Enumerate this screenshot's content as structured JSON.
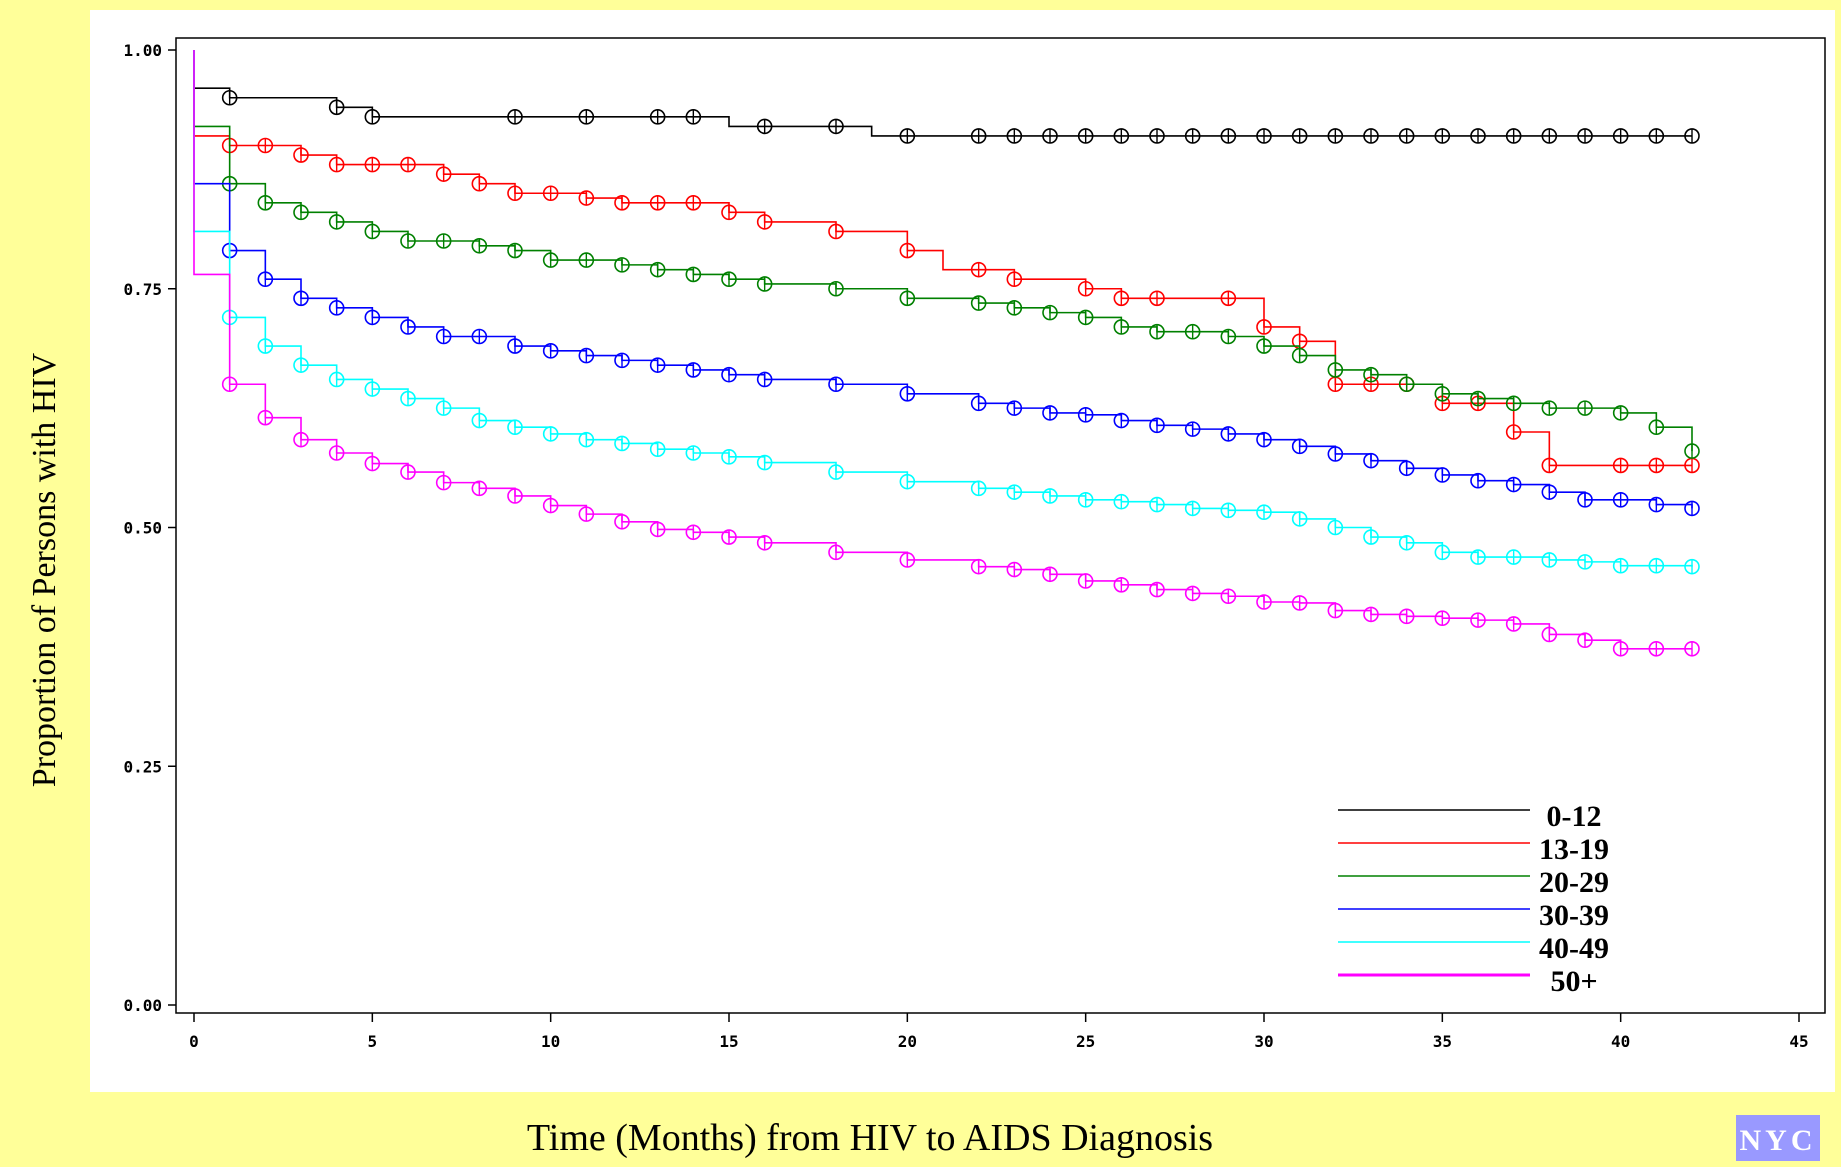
{
  "page": {
    "y_title": "Proportion of Persons with HIV",
    "x_title": "Time (Months) from HIV to AIDS Diagnosis",
    "badge": "NYC"
  },
  "chart_data": {
    "type": "line",
    "step": true,
    "xlabel": "Time (Months) from HIV to AIDS Diagnosis",
    "ylabel": "Proportion of Persons with HIV",
    "xlim": [
      0,
      45
    ],
    "ylim": [
      0,
      1
    ],
    "x_ticks": [
      0,
      5,
      10,
      15,
      20,
      25,
      30,
      35,
      40,
      45
    ],
    "x_tick_labels": [
      "0",
      "5",
      "10",
      "15",
      "20",
      "25",
      "30",
      "35",
      "40",
      "45"
    ],
    "y_ticks": [
      0,
      0.25,
      0.5,
      0.75,
      1.0
    ],
    "y_tick_labels": [
      "0.00",
      "0.25",
      "0.50",
      "0.75",
      "1.00"
    ],
    "grid": false,
    "legend_position": "bottom-right",
    "censor_marker": "circle",
    "series": [
      {
        "name": "0-12",
        "color": "#000000",
        "steps": [
          [
            0,
            1.0
          ],
          [
            0,
            0.96
          ],
          [
            1,
            0.95
          ],
          [
            4,
            0.94
          ],
          [
            5,
            0.93
          ],
          [
            15,
            0.92
          ],
          [
            19,
            0.91
          ],
          [
            42,
            0.91
          ]
        ],
        "censor_x": [
          1,
          4,
          5,
          9,
          11,
          13,
          14,
          16,
          18,
          20,
          22,
          23,
          24,
          25,
          26,
          27,
          28,
          29,
          30,
          31,
          32,
          33,
          34,
          35,
          36,
          37,
          38,
          39,
          40,
          41,
          42
        ]
      },
      {
        "name": "13-19",
        "color": "#ff0000",
        "steps": [
          [
            0,
            1.0
          ],
          [
            0,
            0.91
          ],
          [
            1,
            0.9
          ],
          [
            3,
            0.89
          ],
          [
            4,
            0.88
          ],
          [
            7,
            0.87
          ],
          [
            8,
            0.86
          ],
          [
            9,
            0.85
          ],
          [
            11,
            0.845
          ],
          [
            12,
            0.84
          ],
          [
            15,
            0.83
          ],
          [
            16,
            0.82
          ],
          [
            18,
            0.81
          ],
          [
            20,
            0.79
          ],
          [
            21,
            0.77
          ],
          [
            23,
            0.76
          ],
          [
            25,
            0.75
          ],
          [
            26,
            0.74
          ],
          [
            30,
            0.71
          ],
          [
            31,
            0.695
          ],
          [
            32,
            0.65
          ],
          [
            35,
            0.63
          ],
          [
            37,
            0.6
          ],
          [
            38,
            0.565
          ],
          [
            42,
            0.565
          ]
        ],
        "censor_x": [
          1,
          2,
          3,
          4,
          5,
          6,
          7,
          8,
          9,
          10,
          11,
          12,
          13,
          14,
          15,
          16,
          18,
          20,
          22,
          23,
          25,
          26,
          27,
          29,
          30,
          31,
          32,
          33,
          34,
          35,
          36,
          37,
          38,
          40,
          41,
          42
        ]
      },
      {
        "name": "20-29",
        "color": "#008000",
        "steps": [
          [
            0,
            1.0
          ],
          [
            0,
            0.92
          ],
          [
            1,
            0.86
          ],
          [
            2,
            0.84
          ],
          [
            3,
            0.83
          ],
          [
            4,
            0.82
          ],
          [
            5,
            0.81
          ],
          [
            6,
            0.8
          ],
          [
            8,
            0.795
          ],
          [
            9,
            0.79
          ],
          [
            10,
            0.78
          ],
          [
            12,
            0.775
          ],
          [
            13,
            0.77
          ],
          [
            14,
            0.765
          ],
          [
            15,
            0.76
          ],
          [
            16,
            0.755
          ],
          [
            18,
            0.75
          ],
          [
            20,
            0.74
          ],
          [
            22,
            0.735
          ],
          [
            23,
            0.73
          ],
          [
            24,
            0.725
          ],
          [
            25,
            0.72
          ],
          [
            26,
            0.71
          ],
          [
            27,
            0.705
          ],
          [
            29,
            0.7
          ],
          [
            30,
            0.69
          ],
          [
            31,
            0.68
          ],
          [
            32,
            0.665
          ],
          [
            33,
            0.66
          ],
          [
            34,
            0.65
          ],
          [
            35,
            0.64
          ],
          [
            36,
            0.635
          ],
          [
            37,
            0.63
          ],
          [
            38,
            0.625
          ],
          [
            40,
            0.62
          ],
          [
            41,
            0.605
          ],
          [
            42,
            0.58
          ]
        ],
        "censor_x": [
          1,
          2,
          3,
          4,
          5,
          6,
          7,
          8,
          9,
          10,
          11,
          12,
          13,
          14,
          15,
          16,
          18,
          20,
          22,
          23,
          24,
          25,
          26,
          27,
          28,
          29,
          30,
          31,
          32,
          33,
          34,
          35,
          36,
          37,
          38,
          39,
          40,
          41,
          42
        ]
      },
      {
        "name": "30-39",
        "color": "#0000ff",
        "steps": [
          [
            0,
            1.0
          ],
          [
            0,
            0.86
          ],
          [
            1,
            0.79
          ],
          [
            2,
            0.76
          ],
          [
            3,
            0.74
          ],
          [
            4,
            0.73
          ],
          [
            5,
            0.72
          ],
          [
            6,
            0.71
          ],
          [
            7,
            0.7
          ],
          [
            9,
            0.69
          ],
          [
            10,
            0.685
          ],
          [
            11,
            0.68
          ],
          [
            12,
            0.675
          ],
          [
            13,
            0.67
          ],
          [
            14,
            0.665
          ],
          [
            15,
            0.66
          ],
          [
            16,
            0.655
          ],
          [
            18,
            0.65
          ],
          [
            20,
            0.64
          ],
          [
            22,
            0.63
          ],
          [
            23,
            0.625
          ],
          [
            24,
            0.62
          ],
          [
            25,
            0.618
          ],
          [
            26,
            0.612
          ],
          [
            27,
            0.607
          ],
          [
            28,
            0.603
          ],
          [
            29,
            0.598
          ],
          [
            30,
            0.592
          ],
          [
            31,
            0.585
          ],
          [
            32,
            0.577
          ],
          [
            33,
            0.57
          ],
          [
            34,
            0.562
          ],
          [
            35,
            0.555
          ],
          [
            36,
            0.549
          ],
          [
            37,
            0.545
          ],
          [
            38,
            0.537
          ],
          [
            39,
            0.529
          ],
          [
            41,
            0.524
          ],
          [
            42,
            0.52
          ]
        ],
        "censor_x": [
          1,
          2,
          3,
          4,
          5,
          6,
          7,
          8,
          9,
          10,
          11,
          12,
          13,
          14,
          15,
          16,
          18,
          20,
          22,
          23,
          24,
          25,
          26,
          27,
          28,
          29,
          30,
          31,
          32,
          33,
          34,
          35,
          36,
          37,
          38,
          39,
          40,
          41,
          42
        ]
      },
      {
        "name": "40-49",
        "color": "#00ffff",
        "steps": [
          [
            0,
            1.0
          ],
          [
            0,
            0.81
          ],
          [
            1,
            0.72
          ],
          [
            2,
            0.69
          ],
          [
            3,
            0.67
          ],
          [
            4,
            0.655
          ],
          [
            5,
            0.645
          ],
          [
            6,
            0.635
          ],
          [
            7,
            0.625
          ],
          [
            8,
            0.612
          ],
          [
            9,
            0.605
          ],
          [
            10,
            0.598
          ],
          [
            11,
            0.592
          ],
          [
            12,
            0.588
          ],
          [
            13,
            0.582
          ],
          [
            14,
            0.578
          ],
          [
            15,
            0.574
          ],
          [
            16,
            0.568
          ],
          [
            18,
            0.558
          ],
          [
            20,
            0.548
          ],
          [
            22,
            0.541
          ],
          [
            23,
            0.537
          ],
          [
            24,
            0.533
          ],
          [
            25,
            0.529
          ],
          [
            26,
            0.527
          ],
          [
            27,
            0.524
          ],
          [
            28,
            0.52
          ],
          [
            29,
            0.518
          ],
          [
            30,
            0.516
          ],
          [
            31,
            0.509
          ],
          [
            32,
            0.5
          ],
          [
            33,
            0.49
          ],
          [
            34,
            0.484
          ],
          [
            35,
            0.474
          ],
          [
            36,
            0.469
          ],
          [
            38,
            0.466
          ],
          [
            39,
            0.464
          ],
          [
            40,
            0.46
          ],
          [
            42,
            0.459
          ]
        ],
        "censor_x": [
          1,
          2,
          3,
          4,
          5,
          6,
          7,
          8,
          9,
          10,
          11,
          12,
          13,
          14,
          15,
          16,
          18,
          20,
          22,
          23,
          24,
          25,
          26,
          27,
          28,
          29,
          30,
          31,
          32,
          33,
          34,
          35,
          36,
          37,
          38,
          39,
          40,
          41,
          42
        ]
      },
      {
        "name": "50+",
        "color": "#ff00ff",
        "steps": [
          [
            0,
            1.0
          ],
          [
            0,
            0.765
          ],
          [
            1,
            0.65
          ],
          [
            2,
            0.615
          ],
          [
            3,
            0.592
          ],
          [
            4,
            0.578
          ],
          [
            5,
            0.567
          ],
          [
            6,
            0.558
          ],
          [
            7,
            0.547
          ],
          [
            8,
            0.541
          ],
          [
            9,
            0.533
          ],
          [
            10,
            0.523
          ],
          [
            11,
            0.514
          ],
          [
            12,
            0.506
          ],
          [
            13,
            0.498
          ],
          [
            14,
            0.495
          ],
          [
            15,
            0.49
          ],
          [
            16,
            0.484
          ],
          [
            18,
            0.474
          ],
          [
            20,
            0.466
          ],
          [
            22,
            0.459
          ],
          [
            23,
            0.456
          ],
          [
            24,
            0.451
          ],
          [
            25,
            0.444
          ],
          [
            26,
            0.44
          ],
          [
            27,
            0.435
          ],
          [
            28,
            0.431
          ],
          [
            29,
            0.428
          ],
          [
            30,
            0.422
          ],
          [
            31,
            0.421
          ],
          [
            32,
            0.413
          ],
          [
            33,
            0.409
          ],
          [
            34,
            0.407
          ],
          [
            35,
            0.405
          ],
          [
            36,
            0.403
          ],
          [
            37,
            0.399
          ],
          [
            38,
            0.388
          ],
          [
            39,
            0.382
          ],
          [
            40,
            0.373
          ],
          [
            42,
            0.373
          ]
        ],
        "censor_x": [
          1,
          2,
          3,
          4,
          5,
          6,
          7,
          8,
          9,
          10,
          11,
          12,
          13,
          14,
          15,
          16,
          18,
          20,
          22,
          23,
          24,
          25,
          26,
          27,
          28,
          29,
          30,
          31,
          32,
          33,
          34,
          35,
          36,
          37,
          38,
          39,
          40,
          41,
          42
        ]
      }
    ]
  }
}
